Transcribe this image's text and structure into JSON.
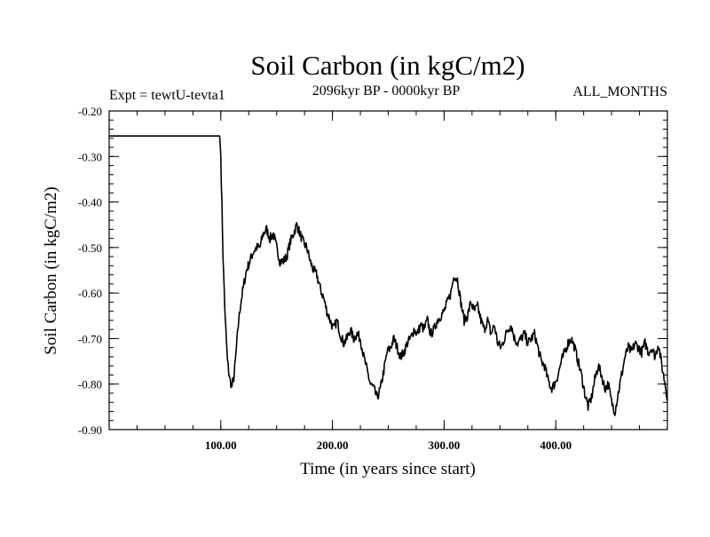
{
  "chart_data": {
    "type": "line",
    "title": "Soil Carbon (in kgC/m2)",
    "experiment": "Expt = tewtU-tevta1",
    "period": "2096kyr BP - 0000kyr BP",
    "season": "ALL_MONTHS",
    "xlabel": "Time (in years since start)",
    "ylabel": "Soil Carbon (in kgC/m2)",
    "xlim": [
      0,
      500
    ],
    "ylim": [
      -0.9,
      -0.2
    ],
    "x_ticks": [
      100,
      200,
      300,
      400
    ],
    "x_tick_labels": [
      "100.00",
      "200.00",
      "300.00",
      "400.00"
    ],
    "y_ticks": [
      -0.2,
      -0.3,
      -0.4,
      -0.5,
      -0.6,
      -0.7,
      -0.8,
      -0.9
    ],
    "y_tick_labels": [
      "-0.20",
      "-0.30",
      "-0.40",
      "-0.50",
      "-0.60",
      "-0.70",
      "-0.80",
      "-0.90"
    ],
    "series": [
      {
        "name": "Soil Carbon",
        "color": "#000000",
        "x": [
          0,
          99,
          100,
          102,
          104,
          106,
          108,
          110,
          112,
          114,
          116,
          118,
          120,
          123,
          126,
          129,
          132,
          135,
          138,
          141,
          144,
          147,
          150,
          153,
          156,
          159,
          162,
          165,
          168,
          171,
          174,
          177,
          180,
          183,
          186,
          189,
          192,
          195,
          198,
          201,
          204,
          207,
          210,
          213,
          216,
          219,
          222,
          225,
          228,
          231,
          234,
          237,
          240,
          243,
          246,
          249,
          252,
          255,
          258,
          261,
          264,
          267,
          270,
          273,
          276,
          279,
          282,
          285,
          288,
          291,
          294,
          297,
          300,
          303,
          306,
          309,
          312,
          315,
          318,
          321,
          324,
          327,
          330,
          333,
          336,
          339,
          342,
          345,
          348,
          351,
          354,
          357,
          360,
          363,
          366,
          369,
          372,
          375,
          378,
          381,
          384,
          387,
          390,
          393,
          396,
          399,
          402,
          405,
          408,
          411,
          414,
          417,
          420,
          423,
          426,
          429,
          432,
          435,
          438,
          441,
          444,
          447,
          450,
          453,
          456,
          459,
          462,
          465,
          468,
          471,
          474,
          477,
          480,
          483,
          486,
          489,
          492,
          495,
          498,
          500
        ],
        "values": [
          -0.255,
          -0.255,
          -0.3,
          -0.52,
          -0.66,
          -0.75,
          -0.79,
          -0.805,
          -0.78,
          -0.72,
          -0.66,
          -0.62,
          -0.59,
          -0.55,
          -0.53,
          -0.51,
          -0.5,
          -0.5,
          -0.47,
          -0.46,
          -0.48,
          -0.47,
          -0.5,
          -0.53,
          -0.53,
          -0.52,
          -0.49,
          -0.47,
          -0.45,
          -0.47,
          -0.49,
          -0.5,
          -0.53,
          -0.55,
          -0.56,
          -0.59,
          -0.61,
          -0.64,
          -0.66,
          -0.68,
          -0.66,
          -0.69,
          -0.71,
          -0.7,
          -0.68,
          -0.7,
          -0.69,
          -0.7,
          -0.74,
          -0.77,
          -0.8,
          -0.81,
          -0.83,
          -0.81,
          -0.77,
          -0.73,
          -0.72,
          -0.7,
          -0.72,
          -0.74,
          -0.73,
          -0.71,
          -0.7,
          -0.68,
          -0.69,
          -0.67,
          -0.68,
          -0.66,
          -0.69,
          -0.68,
          -0.66,
          -0.65,
          -0.64,
          -0.62,
          -0.6,
          -0.56,
          -0.57,
          -0.62,
          -0.66,
          -0.65,
          -0.62,
          -0.64,
          -0.63,
          -0.66,
          -0.68,
          -0.66,
          -0.69,
          -0.67,
          -0.71,
          -0.72,
          -0.7,
          -0.68,
          -0.67,
          -0.7,
          -0.71,
          -0.7,
          -0.69,
          -0.71,
          -0.7,
          -0.69,
          -0.72,
          -0.75,
          -0.76,
          -0.79,
          -0.81,
          -0.8,
          -0.78,
          -0.75,
          -0.73,
          -0.71,
          -0.7,
          -0.72,
          -0.75,
          -0.78,
          -0.82,
          -0.85,
          -0.83,
          -0.79,
          -0.76,
          -0.78,
          -0.81,
          -0.8,
          -0.84,
          -0.86,
          -0.82,
          -0.78,
          -0.74,
          -0.72,
          -0.73,
          -0.71,
          -0.72,
          -0.73,
          -0.71,
          -0.73,
          -0.72,
          -0.74,
          -0.71,
          -0.76,
          -0.8,
          -0.83
        ]
      }
    ]
  }
}
